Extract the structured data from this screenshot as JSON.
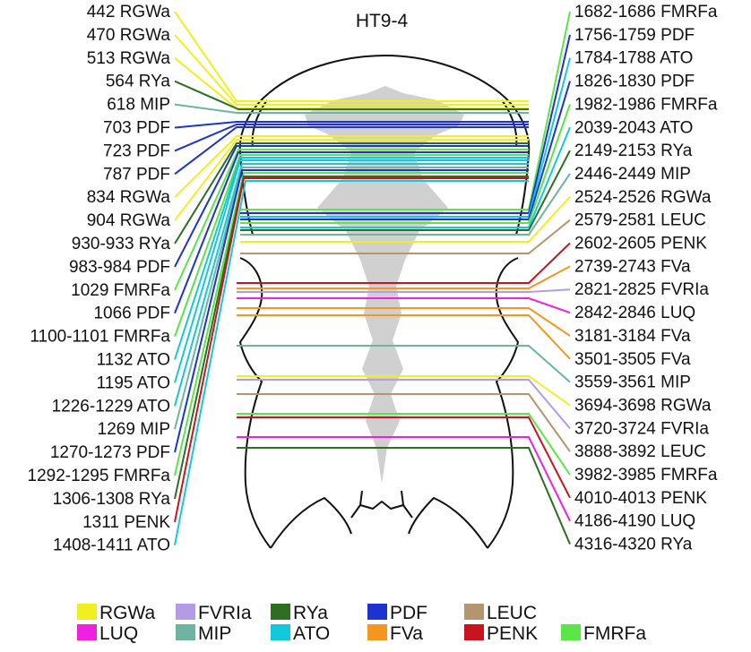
{
  "title": "HT9-4",
  "colors": {
    "RGWa": "#f0f020",
    "FVRIa": "#b49be6",
    "RYa": "#2d6e23",
    "PDF": "#1e32d2",
    "LEUC": "#b4966e",
    "LUQ": "#f020e1",
    "MIP": "#6eb4a0",
    "ATO": "#14c8dc",
    "FVa": "#f5961e",
    "PENK": "#c8141e",
    "FMRFa": "#5ae646"
  },
  "legend": {
    "items": [
      {
        "label": "RGWa",
        "key": "RGWa"
      },
      {
        "label": "FVRIa",
        "key": "FVRIa"
      },
      {
        "label": "RYa",
        "key": "RYa"
      },
      {
        "label": "PDF",
        "key": "PDF"
      },
      {
        "label": "LEUC",
        "key": "LEUC"
      },
      {
        "label": "LUQ",
        "key": "LUQ"
      },
      {
        "label": "MIP",
        "key": "MIP"
      },
      {
        "label": "ATO",
        "key": "ATO"
      },
      {
        "label": "FVa",
        "key": "FVa"
      },
      {
        "label": "PENK",
        "key": "PENK"
      },
      {
        "label": "FMRFa",
        "key": "FMRFa"
      }
    ]
  },
  "left_labels": [
    {
      "text": "442 RGWa",
      "type": "RGWa"
    },
    {
      "text": "470 RGWa",
      "type": "RGWa"
    },
    {
      "text": "513 RGWa",
      "type": "RGWa"
    },
    {
      "text": "564 RYa",
      "type": "RYa"
    },
    {
      "text": "618 MIP",
      "type": "MIP"
    },
    {
      "text": "703 PDF",
      "type": "PDF"
    },
    {
      "text": "723 PDF",
      "type": "PDF"
    },
    {
      "text": "787 PDF",
      "type": "PDF"
    },
    {
      "text": "834 RGWa",
      "type": "RGWa"
    },
    {
      "text": "904 RGWa",
      "type": "RGWa"
    },
    {
      "text": "930-933 RYa",
      "type": "RYa"
    },
    {
      "text": "983-984 PDF",
      "type": "PDF"
    },
    {
      "text": "1029 FMRFa",
      "type": "FMRFa"
    },
    {
      "text": "1066 PDF",
      "type": "PDF"
    },
    {
      "text": "1100-1101 FMRFa",
      "type": "FMRFa"
    },
    {
      "text": "1132 ATO",
      "type": "ATO"
    },
    {
      "text": "1195 ATO",
      "type": "ATO"
    },
    {
      "text": "1226-1229 ATO",
      "type": "ATO"
    },
    {
      "text": "1269 MIP",
      "type": "MIP"
    },
    {
      "text": "1270-1273 PDF",
      "type": "PDF"
    },
    {
      "text": "1292-1295 FMRFa",
      "type": "FMRFa"
    },
    {
      "text": "1306-1308 RYa",
      "type": "RYa"
    },
    {
      "text": "1311 PENK",
      "type": "PENK"
    },
    {
      "text": "1408-1411 ATO",
      "type": "ATO"
    }
  ],
  "right_labels": [
    {
      "text": "1682-1686 FMRFa",
      "type": "FMRFa"
    },
    {
      "text": "1756-1759 PDF",
      "type": "PDF"
    },
    {
      "text": "1784-1788 ATO",
      "type": "ATO"
    },
    {
      "text": "1826-1830 PDF",
      "type": "PDF"
    },
    {
      "text": "1982-1986 FMRFa",
      "type": "FMRFa"
    },
    {
      "text": "2039-2043 ATO",
      "type": "ATO"
    },
    {
      "text": "2149-2153 RYa",
      "type": "RYa"
    },
    {
      "text": "2446-2449 MIP",
      "type": "MIP"
    },
    {
      "text": "2524-2526 RGWa",
      "type": "RGWa"
    },
    {
      "text": "2579-2581 LEUC",
      "type": "LEUC"
    },
    {
      "text": "2602-2605 PENK",
      "type": "PENK"
    },
    {
      "text": "2739-2743 FVa",
      "type": "FVa"
    },
    {
      "text": "2821-2825 FVRIa",
      "type": "FVRIa"
    },
    {
      "text": "2842-2846 LUQ",
      "type": "LUQ"
    },
    {
      "text": "3181-3184 FVa",
      "type": "FVa"
    },
    {
      "text": "3501-3505 FVa",
      "type": "FVa"
    },
    {
      "text": "3559-3561 MIP",
      "type": "MIP"
    },
    {
      "text": "3694-3698 RGWa",
      "type": "RGWa"
    },
    {
      "text": "3720-3724 FVRIa",
      "type": "FVRIa"
    },
    {
      "text": "3888-3892 LEUC",
      "type": "LEUC"
    },
    {
      "text": "3982-3985 FMRFa",
      "type": "FMRFa"
    },
    {
      "text": "4010-4013 PENK",
      "type": "PENK"
    },
    {
      "text": "4186-4190 LUQ",
      "type": "LUQ"
    },
    {
      "text": "4316-4320 RYa",
      "type": "RYa"
    }
  ]
}
